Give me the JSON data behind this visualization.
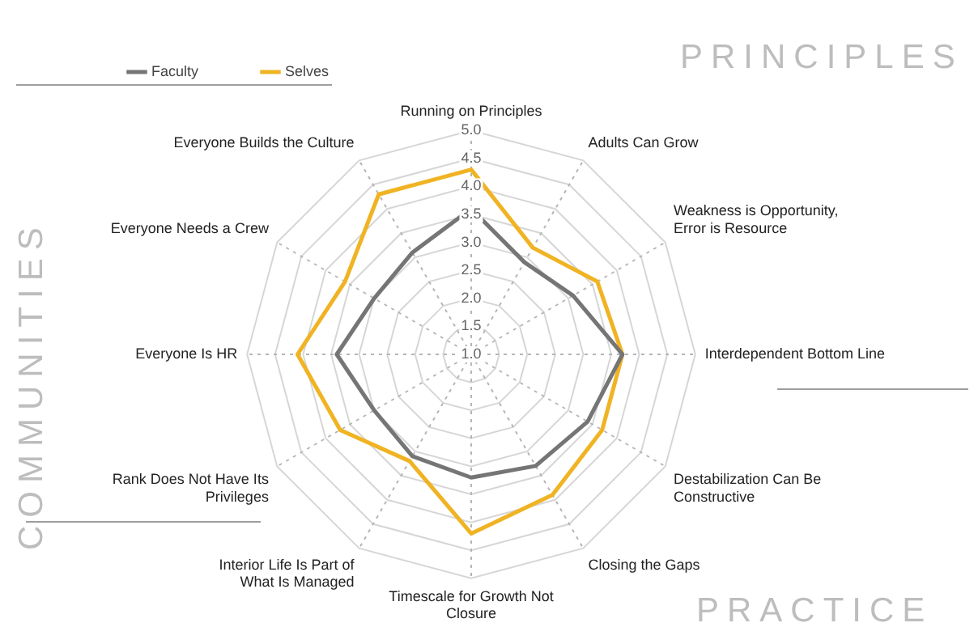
{
  "chart_data": {
    "type": "radar",
    "categories": [
      "Running on Principles",
      "Adults Can Grow",
      "Weakness is Opportunity, Error is Resource",
      "Interdependent Bottom Line",
      "Destabilization Can Be Constructive",
      "Closing the Gaps",
      "Timescale for Growth Not Closure",
      "Interior Life Is Part of What Is Managed",
      "Rank Does Not Have Its Privileges",
      "Everyone Is HR",
      "Everyone Needs a Crew",
      "Everyone Builds the Culture"
    ],
    "series": [
      {
        "name": "Faculty",
        "color": "#757575",
        "values": [
          3.6,
          2.9,
          3.1,
          3.7,
          3.4,
          3.3,
          3.2,
          3.1,
          3.0,
          3.4,
          3.0,
          3.1
        ]
      },
      {
        "name": "Selves",
        "color": "#f0b323",
        "values": [
          4.3,
          3.2,
          3.6,
          3.7,
          3.7,
          3.9,
          4.2,
          3.2,
          3.7,
          4.1,
          3.6,
          4.3
        ]
      }
    ],
    "ylim": [
      1,
      5
    ],
    "yticks": [
      {
        "value": 1,
        "label": "1.0"
      },
      {
        "value": 1.5,
        "label": "1.5"
      },
      {
        "value": 2,
        "label": "2.0"
      },
      {
        "value": 2.5,
        "label": "2.5"
      },
      {
        "value": 3,
        "label": "3.0"
      },
      {
        "value": 3.5,
        "label": "3.5"
      },
      {
        "value": 4,
        "label": "4.0"
      },
      {
        "value": 4.5,
        "label": "4.5"
      },
      {
        "value": 5,
        "label": "5.0"
      }
    ],
    "grid": true,
    "legend": "top left",
    "marker": "none",
    "line_style": "solid",
    "annotations": [
      "PRINCIPLES",
      "COMMUNITIES",
      "PRACTICE"
    ]
  }
}
